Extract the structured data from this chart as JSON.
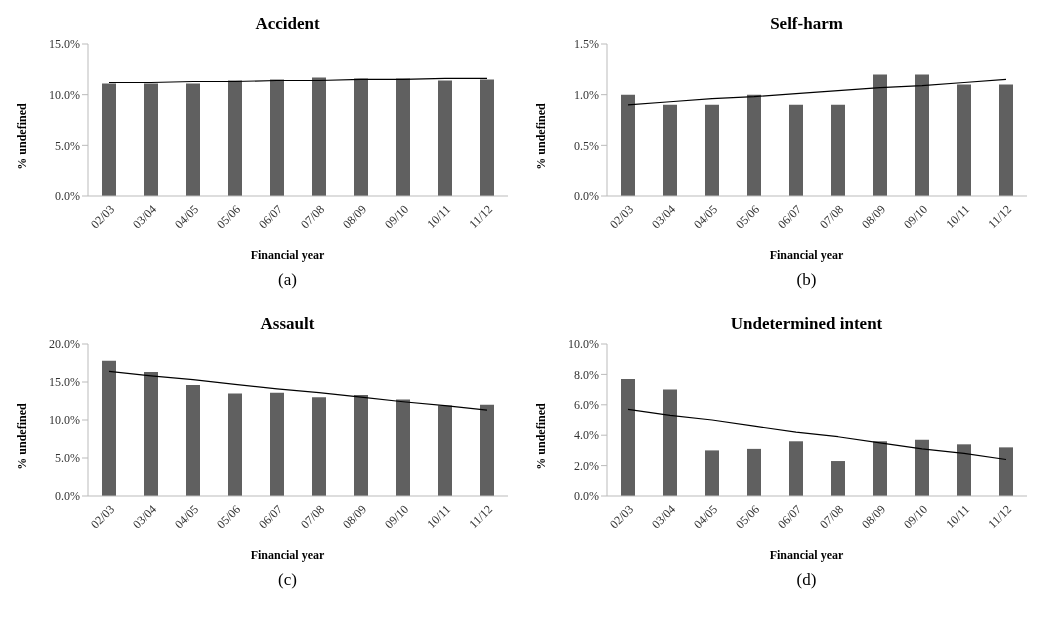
{
  "chart_data": [
    {
      "type": "bar",
      "title": "Accident",
      "xlabel": "Financial year",
      "ylabel": "% undefined",
      "annotations": [
        "(a)"
      ],
      "categories": [
        "02/03",
        "03/04",
        "04/05",
        "05/06",
        "06/07",
        "07/08",
        "08/09",
        "09/10",
        "10/11",
        "11/12"
      ],
      "series": [
        {
          "color": "#606060",
          "values": [
            11.1,
            11.1,
            11.1,
            11.4,
            11.5,
            11.7,
            11.6,
            11.6,
            11.4,
            11.5
          ]
        },
        {
          "type": "line",
          "color": "#000000",
          "values": [
            11.2,
            11.2,
            11.3,
            11.3,
            11.4,
            11.4,
            11.5,
            11.5,
            11.6,
            11.6
          ]
        }
      ],
      "ylim": [
        0,
        15
      ],
      "yticks": [
        {
          "value": 0,
          "label": "0.0%"
        },
        {
          "value": 5,
          "label": "5.0%"
        },
        {
          "value": 10,
          "label": "10.0%"
        },
        {
          "value": 15,
          "label": "15.0%"
        }
      ],
      "grid": false,
      "legend": false,
      "marker": "none"
    },
    {
      "type": "bar",
      "title": "Self-harm",
      "xlabel": "Financial year",
      "ylabel": "% undefined",
      "annotations": [
        "(b)"
      ],
      "categories": [
        "02/03",
        "03/04",
        "04/05",
        "05/06",
        "06/07",
        "07/08",
        "08/09",
        "09/10",
        "10/11",
        "11/12"
      ],
      "series": [
        {
          "color": "#606060",
          "values": [
            1.0,
            0.9,
            0.9,
            1.0,
            0.9,
            0.9,
            1.2,
            1.2,
            1.1,
            1.1
          ]
        },
        {
          "type": "line",
          "color": "#000000",
          "values": [
            0.9,
            0.93,
            0.96,
            0.98,
            1.01,
            1.04,
            1.07,
            1.09,
            1.12,
            1.15
          ]
        }
      ],
      "ylim": [
        0,
        1.5
      ],
      "yticks": [
        {
          "value": 0,
          "label": "0.0%"
        },
        {
          "value": 0.5,
          "label": "0.5%"
        },
        {
          "value": 1,
          "label": "1.0%"
        },
        {
          "value": 1.5,
          "label": "1.5%"
        }
      ],
      "grid": false,
      "legend": false,
      "marker": "none"
    },
    {
      "type": "bar",
      "title": "Assault",
      "xlabel": "Financial year",
      "ylabel": "% undefined",
      "annotations": [
        "(c)"
      ],
      "categories": [
        "02/03",
        "03/04",
        "04/05",
        "05/06",
        "06/07",
        "07/08",
        "08/09",
        "09/10",
        "10/11",
        "11/12"
      ],
      "series": [
        {
          "color": "#606060",
          "values": [
            17.8,
            16.3,
            14.6,
            13.5,
            13.6,
            13.0,
            13.3,
            12.7,
            11.9,
            12.0
          ]
        },
        {
          "type": "line",
          "color": "#000000",
          "values": [
            16.4,
            15.8,
            15.3,
            14.7,
            14.1,
            13.6,
            13.0,
            12.4,
            11.9,
            11.3
          ]
        }
      ],
      "ylim": [
        0,
        20
      ],
      "yticks": [
        {
          "value": 0,
          "label": "0.0%"
        },
        {
          "value": 5,
          "label": "5.0%"
        },
        {
          "value": 10,
          "label": "10.0%"
        },
        {
          "value": 15,
          "label": "15.0%"
        },
        {
          "value": 20,
          "label": "20.0%"
        }
      ],
      "grid": false,
      "legend": false,
      "marker": "none"
    },
    {
      "type": "bar",
      "title": "Undetermined intent",
      "xlabel": "Financial year",
      "ylabel": "% undefined",
      "annotations": [
        "(d)"
      ],
      "categories": [
        "02/03",
        "03/04",
        "04/05",
        "05/06",
        "06/07",
        "07/08",
        "08/09",
        "09/10",
        "10/11",
        "11/12"
      ],
      "series": [
        {
          "color": "#606060",
          "values": [
            7.7,
            7.0,
            3.0,
            3.1,
            3.6,
            2.3,
            3.6,
            3.7,
            3.4,
            3.2
          ]
        },
        {
          "type": "line",
          "color": "#000000",
          "values": [
            5.7,
            5.3,
            5.0,
            4.6,
            4.2,
            3.9,
            3.5,
            3.1,
            2.8,
            2.4
          ]
        }
      ],
      "ylim": [
        0,
        10
      ],
      "yticks": [
        {
          "value": 0,
          "label": "0.0%"
        },
        {
          "value": 2,
          "label": "2.0%"
        },
        {
          "value": 4,
          "label": "4.0%"
        },
        {
          "value": 6,
          "label": "6.0%"
        },
        {
          "value": 8,
          "label": "8.0%"
        },
        {
          "value": 10,
          "label": "10.0%"
        }
      ],
      "grid": false,
      "legend": false,
      "marker": "none"
    }
  ]
}
